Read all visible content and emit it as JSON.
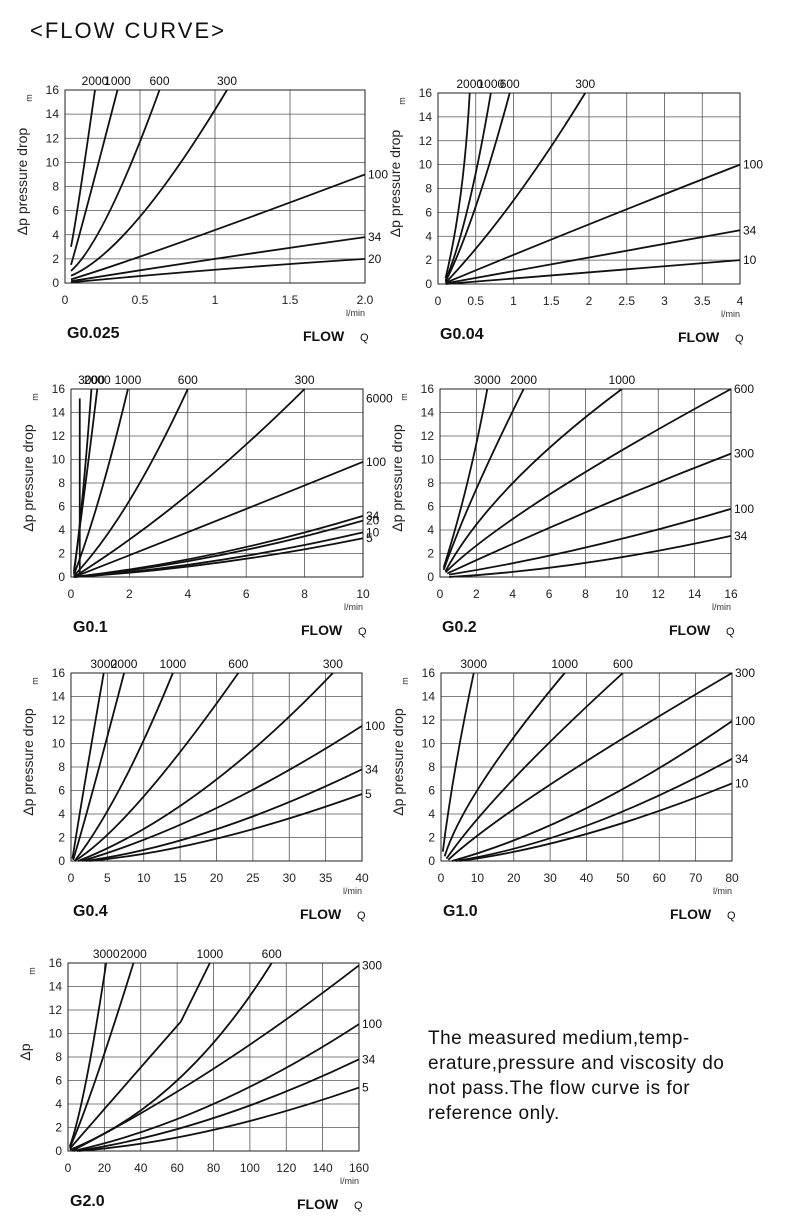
{
  "title": "<FLOW CURVE>",
  "note": "The measured medium,temp-erature,pressure and viscosity do not pass.The flow curve is for reference only.",
  "chart_data": [
    {
      "type": "line",
      "model": "G0.025",
      "unit_label": "l/min",
      "flow_label": "FLOW",
      "flow_symbol": "Q",
      "ylabel": "Δp pressure drop",
      "xlim": [
        0,
        2.0
      ],
      "ylim": [
        0,
        16
      ],
      "x_ticks": [
        "0",
        "0.5",
        "1",
        "1.5",
        "2.0"
      ],
      "y_ticks": [
        "0",
        "2",
        "4",
        "6",
        "8",
        "10",
        "12",
        "14",
        "16"
      ],
      "series": [
        {
          "name": "2000",
          "points": [
            [
              0.04,
              3.0
            ],
            [
              0.1,
              7.5
            ],
            [
              0.2,
              16
            ]
          ]
        },
        {
          "name": "1000",
          "points": [
            [
              0.04,
              1.5
            ],
            [
              0.15,
              6.5
            ],
            [
              0.35,
              16
            ]
          ]
        },
        {
          "name": "600",
          "points": [
            [
              0.04,
              1.0
            ],
            [
              0.3,
              6.0
            ],
            [
              0.63,
              16
            ]
          ]
        },
        {
          "name": "300",
          "points": [
            [
              0.04,
              0.6
            ],
            [
              0.5,
              5.5
            ],
            [
              1.08,
              16
            ]
          ]
        },
        {
          "name": "100",
          "points": [
            [
              0.04,
              0.3
            ],
            [
              0.8,
              3.5
            ],
            [
              2.0,
              9.0
            ]
          ]
        },
        {
          "name": "34",
          "points": [
            [
              0.04,
              0.15
            ],
            [
              1.0,
              2.0
            ],
            [
              2.0,
              3.8
            ]
          ]
        },
        {
          "name": "20",
          "points": [
            [
              0.04,
              0.05
            ],
            [
              1.0,
              1.1
            ],
            [
              2.0,
              2.0
            ]
          ]
        }
      ]
    },
    {
      "type": "line",
      "model": "G0.04",
      "unit_label": "l/min",
      "flow_label": "FLOW",
      "flow_symbol": "Q",
      "ylabel": "Δp pressure drop",
      "xlim": [
        0,
        4
      ],
      "ylim": [
        0,
        16
      ],
      "x_ticks": [
        "0",
        "0.5",
        "1",
        "1.5",
        "2",
        "2.5",
        "3",
        "3.5",
        "4"
      ],
      "y_ticks": [
        "0",
        "2",
        "4",
        "6",
        "8",
        "10",
        "12",
        "14",
        "16"
      ],
      "series": [
        {
          "name": "2000",
          "points": [
            [
              0.1,
              0.5
            ],
            [
              0.3,
              7.5
            ],
            [
              0.42,
              16
            ]
          ]
        },
        {
          "name": "1000",
          "points": [
            [
              0.1,
              0.3
            ],
            [
              0.4,
              6.5
            ],
            [
              0.7,
              16
            ]
          ]
        },
        {
          "name": "600",
          "points": [
            [
              0.1,
              0.2
            ],
            [
              0.5,
              6.5
            ],
            [
              0.95,
              16
            ]
          ]
        },
        {
          "name": "300",
          "points": [
            [
              0.1,
              0.1
            ],
            [
              1.0,
              7.0
            ],
            [
              1.95,
              16
            ]
          ]
        },
        {
          "name": "100",
          "points": [
            [
              0.1,
              0.1
            ],
            [
              2.0,
              5.0
            ],
            [
              4.0,
              10.0
            ]
          ]
        },
        {
          "name": "34",
          "points": [
            [
              0.1,
              0.05
            ],
            [
              2.0,
              2.2
            ],
            [
              4.0,
              4.5
            ]
          ]
        },
        {
          "name": "10",
          "points": [
            [
              0.1,
              0.0
            ],
            [
              2.0,
              1.0
            ],
            [
              4.0,
              2.0
            ]
          ]
        }
      ]
    },
    {
      "type": "line",
      "model": "G0.1",
      "unit_label": "l/min",
      "flow_label": "FLOW",
      "flow_symbol": "Q",
      "ylabel": "Δp pressure drop",
      "xlim": [
        0,
        10
      ],
      "ylim": [
        0,
        16
      ],
      "x_ticks": [
        "0",
        "2",
        "4",
        "6",
        "8",
        "10"
      ],
      "y_ticks": [
        "0",
        "2",
        "4",
        "6",
        "8",
        "10",
        "12",
        "14",
        "16"
      ],
      "series": [
        {
          "name": "6000",
          "points": [
            [
              0.3,
              15.2
            ],
            [
              0.3,
              15.2
            ]
          ]
        },
        {
          "name": "2000",
          "points": [
            [
              0.1,
              0.5
            ],
            [
              0.5,
              8.0
            ],
            [
              0.9,
              16
            ]
          ]
        },
        {
          "name": "3000",
          "points": [
            [
              0.1,
              0.3
            ],
            [
              0.4,
              7.0
            ],
            [
              0.7,
              16
            ]
          ]
        },
        {
          "name": "1000",
          "points": [
            [
              0.1,
              0.2
            ],
            [
              1.0,
              7.0
            ],
            [
              1.95,
              16
            ]
          ]
        },
        {
          "name": "600",
          "points": [
            [
              0.1,
              0.1
            ],
            [
              2.0,
              6.5
            ],
            [
              4.0,
              16
            ]
          ]
        },
        {
          "name": "300",
          "points": [
            [
              0.1,
              0.0
            ],
            [
              4.0,
              7.0
            ],
            [
              8.0,
              16
            ]
          ]
        },
        {
          "name": "100",
          "points": [
            [
              0.1,
              0.0
            ],
            [
              5.0,
              4.8
            ],
            [
              10.0,
              9.8
            ]
          ]
        },
        {
          "name": "34",
          "points": [
            [
              0.1,
              0.0
            ],
            [
              5.0,
              2.0
            ],
            [
              10.0,
              5.2
            ]
          ]
        },
        {
          "name": "20",
          "points": [
            [
              0.1,
              0.0
            ],
            [
              5.0,
              1.8
            ],
            [
              10.0,
              4.8
            ]
          ]
        },
        {
          "name": "10",
          "points": [
            [
              0.1,
              0.0
            ],
            [
              5.0,
              1.4
            ],
            [
              10.0,
              3.8
            ]
          ]
        },
        {
          "name": "5",
          "points": [
            [
              0.1,
              0.0
            ],
            [
              5.0,
              1.2
            ],
            [
              10.0,
              3.3
            ]
          ]
        }
      ]
    },
    {
      "type": "line",
      "model": "G0.2",
      "unit_label": "l/min",
      "flow_label": "FLOW",
      "flow_symbol": "Q",
      "ylabel": "Δp pressure drop",
      "xlim": [
        0,
        16
      ],
      "ylim": [
        0,
        16
      ],
      "x_ticks": [
        "0",
        "2",
        "4",
        "6",
        "8",
        "10",
        "12",
        "14",
        "16"
      ],
      "y_ticks": [
        "0",
        "2",
        "4",
        "6",
        "8",
        "10",
        "12",
        "14",
        "16"
      ],
      "series": [
        {
          "name": "3000",
          "points": [
            [
              0.2,
              0.8
            ],
            [
              1.5,
              8.0
            ],
            [
              2.6,
              16
            ]
          ]
        },
        {
          "name": "2000",
          "points": [
            [
              0.2,
              0.6
            ],
            [
              2.0,
              7.5
            ],
            [
              4.6,
              16
            ]
          ]
        },
        {
          "name": "1000",
          "points": [
            [
              0.3,
              0.5
            ],
            [
              4.0,
              8.0
            ],
            [
              10.0,
              16
            ]
          ]
        },
        {
          "name": "600",
          "points": [
            [
              0.3,
              0.4
            ],
            [
              6.0,
              7.0
            ],
            [
              16.0,
              16
            ]
          ]
        },
        {
          "name": "300",
          "points": [
            [
              0.4,
              0.3
            ],
            [
              8.0,
              5.5
            ],
            [
              16.0,
              10.5
            ]
          ]
        },
        {
          "name": "100",
          "points": [
            [
              0.5,
              0.2
            ],
            [
              8.0,
              2.5
            ],
            [
              16.0,
              5.8
            ]
          ]
        },
        {
          "name": "34",
          "points": [
            [
              0.5,
              0.0
            ],
            [
              8.0,
              1.2
            ],
            [
              16.0,
              3.5
            ]
          ]
        }
      ]
    },
    {
      "type": "line",
      "model": "G0.4",
      "unit_label": "l/min",
      "flow_label": "FLOW",
      "flow_symbol": "Q",
      "ylabel": "Δp pressure drop",
      "xlim": [
        0,
        40
      ],
      "ylim": [
        0,
        16
      ],
      "x_ticks": [
        "0",
        "5",
        "10",
        "15",
        "20",
        "25",
        "30",
        "35",
        "40"
      ],
      "y_ticks": [
        "0",
        "2",
        "4",
        "6",
        "8",
        "10",
        "12",
        "14",
        "16"
      ],
      "series": [
        {
          "name": "3000",
          "points": [
            [
              0.2,
              0.2
            ],
            [
              2.0,
              7.0
            ],
            [
              4.5,
              16
            ]
          ]
        },
        {
          "name": "2000",
          "points": [
            [
              0.3,
              0.1
            ],
            [
              3.0,
              6.0
            ],
            [
              7.3,
              16
            ]
          ]
        },
        {
          "name": "1000",
          "points": [
            [
              0.5,
              0.0
            ],
            [
              7.0,
              6.5
            ],
            [
              14.0,
              16
            ]
          ]
        },
        {
          "name": "600",
          "points": [
            [
              0.5,
              0.0
            ],
            [
              10.0,
              5.5
            ],
            [
              23.0,
              16
            ]
          ]
        },
        {
          "name": "300",
          "points": [
            [
              1.0,
              0.0
            ],
            [
              18.0,
              6.0
            ],
            [
              36.0,
              16
            ]
          ]
        },
        {
          "name": "100",
          "points": [
            [
              1.5,
              0.0
            ],
            [
              20.0,
              4.5
            ],
            [
              40.0,
              11.5
            ]
          ]
        },
        {
          "name": "34",
          "points": [
            [
              2.0,
              0.0
            ],
            [
              20.0,
              2.7
            ],
            [
              40.0,
              7.8
            ]
          ]
        },
        {
          "name": "5",
          "points": [
            [
              2.5,
              0.0
            ],
            [
              20.0,
              1.9
            ],
            [
              40.0,
              5.7
            ]
          ]
        }
      ]
    },
    {
      "type": "line",
      "model": "G1.0",
      "unit_label": "l/min",
      "flow_label": "FLOW",
      "flow_symbol": "Q",
      "ylabel": "Δp pressure drop",
      "xlim": [
        0,
        80
      ],
      "ylim": [
        0,
        16
      ],
      "x_ticks": [
        "0",
        "10",
        "20",
        "30",
        "40",
        "50",
        "60",
        "70",
        "80"
      ],
      "y_ticks": [
        "0",
        "2",
        "4",
        "6",
        "8",
        "10",
        "12",
        "14",
        "16"
      ],
      "series": [
        {
          "name": "3000",
          "points": [
            [
              0.5,
              0.8
            ],
            [
              4.0,
              8.0
            ],
            [
              9.0,
              16
            ]
          ]
        },
        {
          "name": "1000",
          "points": [
            [
              1.0,
              0.4
            ],
            [
              12.0,
              7.0
            ],
            [
              34.0,
              16
            ]
          ]
        },
        {
          "name": "600",
          "points": [
            [
              1.5,
              0.2
            ],
            [
              20.0,
              7.0
            ],
            [
              50.0,
              16
            ]
          ]
        },
        {
          "name": "300",
          "points": [
            [
              2.0,
              0.1
            ],
            [
              30.0,
              6.5
            ],
            [
              80.0,
              16
            ]
          ]
        },
        {
          "name": "100",
          "points": [
            [
              3.0,
              0.0
            ],
            [
              40.0,
              4.5
            ],
            [
              80.0,
              11.9
            ]
          ]
        },
        {
          "name": "34",
          "points": [
            [
              4.0,
              0.0
            ],
            [
              40.0,
              3.0
            ],
            [
              80.0,
              8.7
            ]
          ]
        },
        {
          "name": "10",
          "points": [
            [
              5.0,
              0.0
            ],
            [
              40.0,
              2.3
            ],
            [
              80.0,
              6.6
            ]
          ]
        }
      ]
    },
    {
      "type": "line",
      "model": "G2.0",
      "unit_label": "l/min",
      "flow_label": "FLOW",
      "flow_symbol": "Q",
      "ylabel": "Δp",
      "xlim": [
        0,
        160
      ],
      "ylim": [
        0,
        16
      ],
      "x_ticks": [
        "0",
        "20",
        "40",
        "60",
        "80",
        "100",
        "120",
        "140",
        "160"
      ],
      "y_ticks": [
        "0",
        "2",
        "4",
        "6",
        "8",
        "10",
        "12",
        "14",
        "16"
      ],
      "series": [
        {
          "name": "3000",
          "points": [
            [
              1.0,
              0.4
            ],
            [
              10.0,
              6.0
            ],
            [
              21.0,
              16
            ]
          ]
        },
        {
          "name": "2000",
          "points": [
            [
              1.0,
              0.3
            ],
            [
              15.0,
              6.0
            ],
            [
              36.0,
              16
            ]
          ]
        },
        {
          "name": "1000",
          "points": [
            [
              1.0,
              0.2
            ],
            [
              45.0,
              8.0
            ],
            [
              62.0,
              11.0
            ],
            [
              78.0,
              16
            ]
          ]
        },
        {
          "name": "600",
          "points": [
            [
              1.0,
              0.1
            ],
            [
              60.0,
              6.0
            ],
            [
              112.0,
              16
            ]
          ]
        },
        {
          "name": "300",
          "points": [
            [
              2.0,
              0.0
            ],
            [
              80.0,
              7.0
            ],
            [
              160.0,
              15.8
            ]
          ]
        },
        {
          "name": "100",
          "points": [
            [
              3.0,
              0.0
            ],
            [
              80.0,
              4.0
            ],
            [
              160.0,
              10.8
            ]
          ]
        },
        {
          "name": "34",
          "points": [
            [
              5.0,
              0.0
            ],
            [
              80.0,
              2.8
            ],
            [
              160.0,
              7.8
            ]
          ]
        },
        {
          "name": "5",
          "points": [
            [
              6.0,
              0.0
            ],
            [
              80.0,
              1.8
            ],
            [
              160.0,
              5.4
            ]
          ]
        }
      ]
    }
  ]
}
